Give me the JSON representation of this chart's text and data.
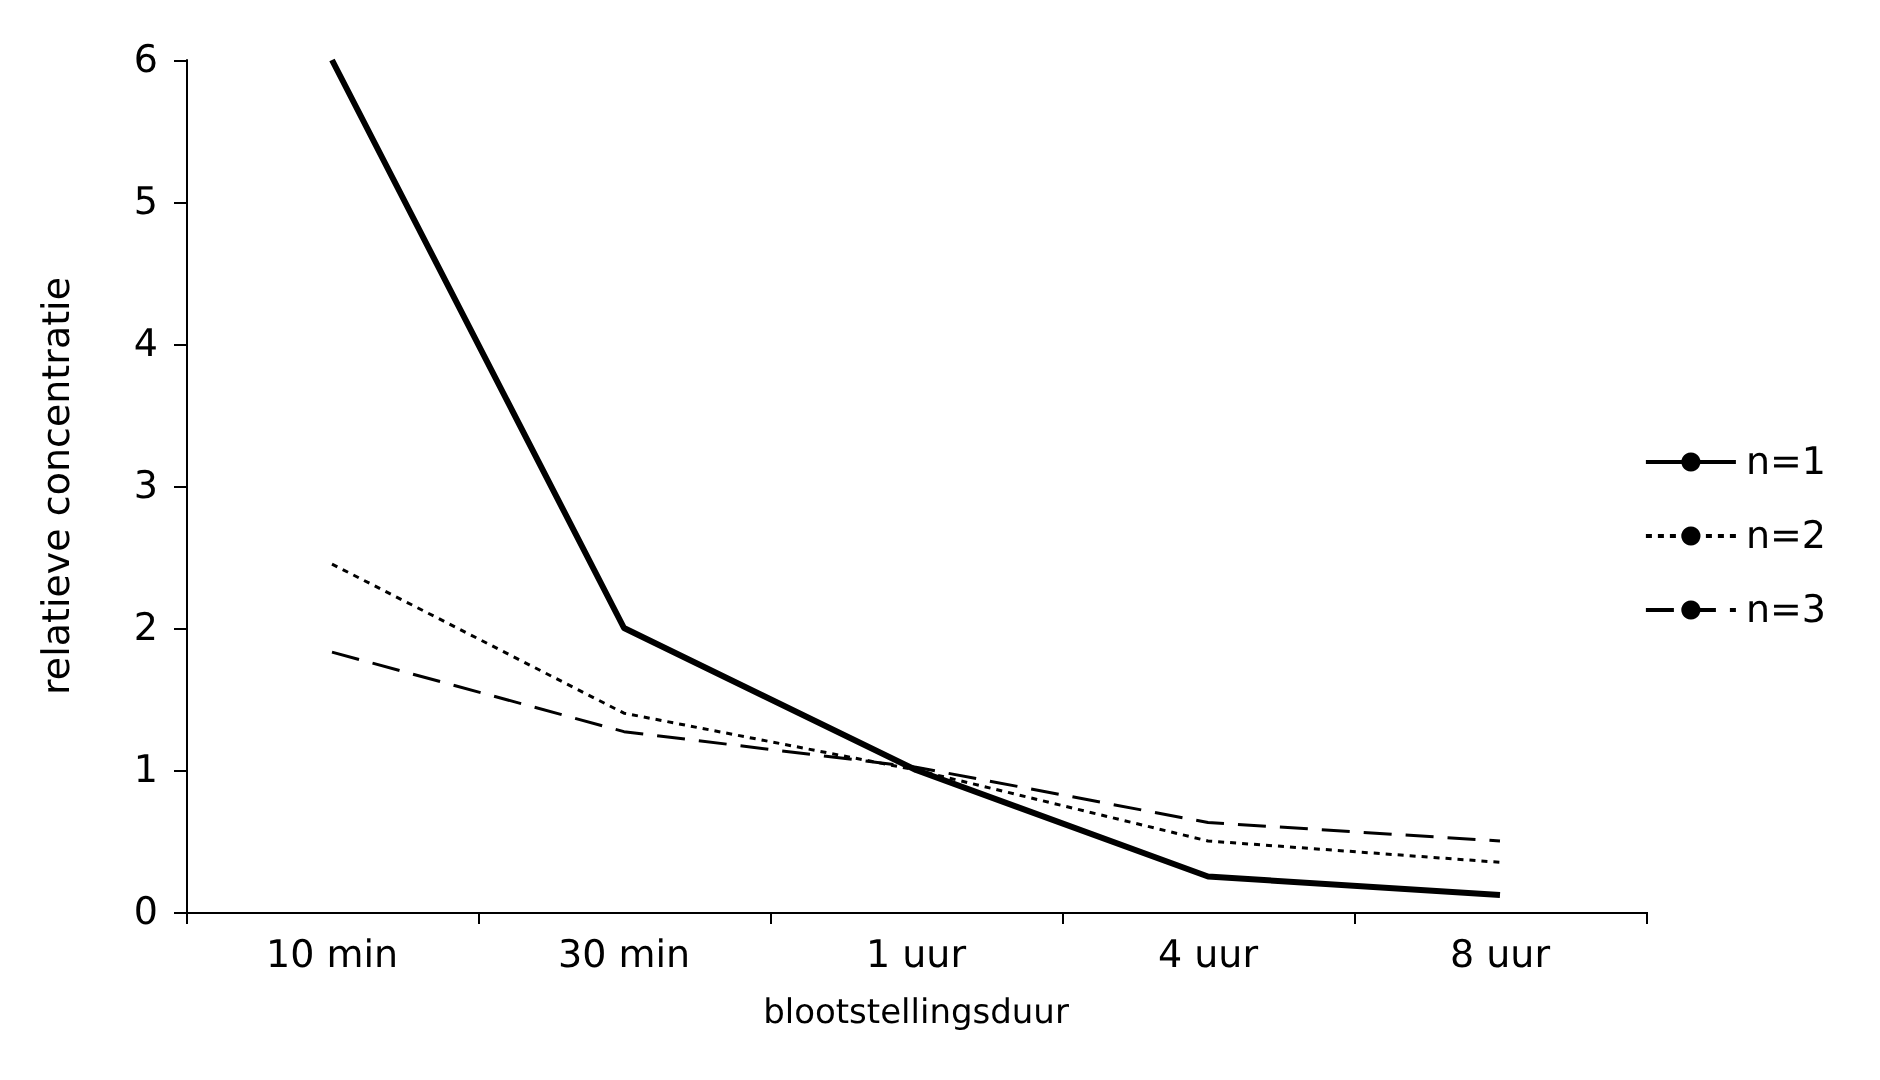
{
  "chart_data": {
    "type": "line",
    "xlabel": "blootstellingsduur",
    "ylabel": "relatieve concentratie",
    "categories": [
      "10 min",
      "30 min",
      "1 uur",
      "4 uur",
      "8 uur"
    ],
    "series": [
      {
        "name": "n=1",
        "color": "#000000",
        "line_style": "solid",
        "values": [
          6,
          2,
          1,
          0.25,
          0.12
        ]
      },
      {
        "name": "n=2",
        "color": "#000000",
        "line_style": "dotted",
        "values": [
          2.45,
          1.4,
          1.0,
          0.5,
          0.35
        ]
      },
      {
        "name": "n=3",
        "color": "#000000",
        "line_style": "dashed",
        "values": [
          1.83,
          1.27,
          1.02,
          0.63,
          0.5
        ]
      }
    ],
    "ylim": [
      0,
      6
    ],
    "yticks": [
      0,
      1,
      2,
      3,
      4,
      5,
      6
    ],
    "grid": false,
    "legend": "right",
    "marker": "none"
  }
}
